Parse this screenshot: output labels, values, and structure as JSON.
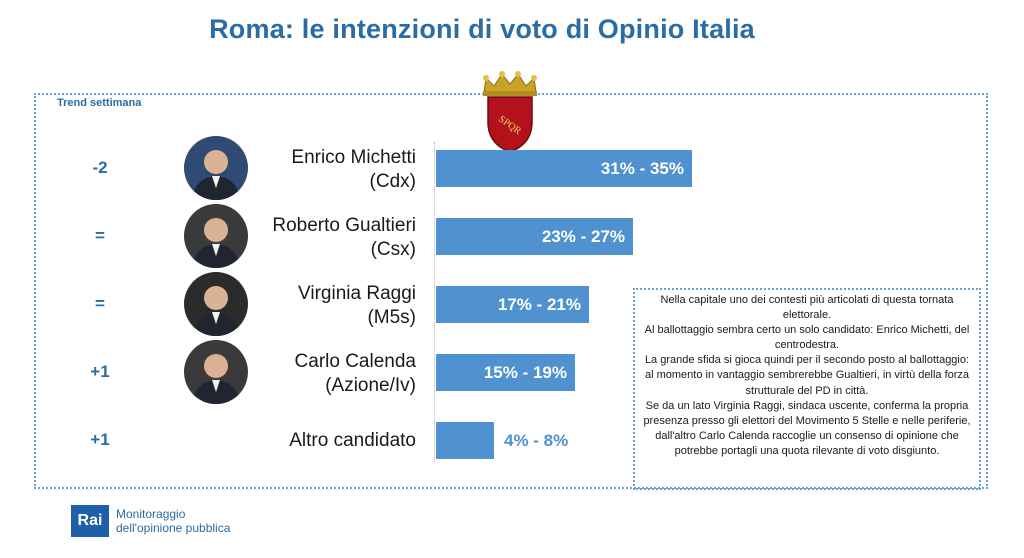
{
  "title": "Roma: le intenzioni di voto di Opinio Italia",
  "trend_label": "Trend settimana",
  "emblem": {
    "icon": "rome-spqr-crest-icon",
    "text": "SPQR"
  },
  "chart_data": {
    "type": "bar",
    "orientation": "horizontal",
    "title": "Roma: le intenzioni di voto di Opinio Italia",
    "categories": [
      "Enrico Michetti (Cdx)",
      "Roberto Gualtieri (Csx)",
      "Virginia Raggi (M5s)",
      "Carlo Calenda (Azione/Iv)",
      "Altro candidato"
    ],
    "ranges": [
      [
        31,
        35
      ],
      [
        23,
        27
      ],
      [
        17,
        21
      ],
      [
        15,
        19
      ],
      [
        4,
        8
      ]
    ],
    "values": [
      35,
      27,
      21,
      19,
      8
    ],
    "unit": "%",
    "bar_color": "#4f92cf"
  },
  "candidates": [
    {
      "name": "Enrico Michetti",
      "party": "(Cdx)",
      "trend": "-2",
      "range_label": "31% - 35%",
      "photo": "candidate-photo"
    },
    {
      "name": "Roberto Gualtieri",
      "party": "(Csx)",
      "trend": "=",
      "range_label": "23% - 27%",
      "photo": "candidate-photo"
    },
    {
      "name": "Virginia Raggi",
      "party": "(M5s)",
      "trend": "=",
      "range_label": "17% - 21%",
      "photo": "candidate-photo"
    },
    {
      "name": "Carlo Calenda",
      "party": "(Azione/Iv)",
      "trend": "+1",
      "range_label": "15% - 19%",
      "photo": "candidate-photo"
    },
    {
      "name": "Altro candidato",
      "party": "",
      "trend": "+1",
      "range_label": "4% - 8%",
      "photo": ""
    }
  ],
  "note": {
    "paragraphs": [
      "Nella capitale uno dei contesti più articolati di questa tornata elettorale.",
      "Al ballottaggio sembra certo un solo candidato: Enrico Michetti, del centrodestra.",
      "La grande sfida si gioca quindi per il secondo posto al ballottaggio: al momento in vantaggio sembrerebbe Gualtieri, in virtù della forza strutturale del PD in città.",
      "Se da un lato Virginia Raggi, sindaca uscente, conferma la propria presenza presso gli elettori del Movimento 5 Stelle e nelle periferie, dall'altro Carlo Calenda raccoglie un consenso di opinione che potrebbe portagli una quota rilevante di voto disgiunto."
    ]
  },
  "footer": {
    "logo_text": "Rai",
    "line1": "Monitoraggio",
    "line2": "dell'opinione pubblica"
  },
  "colors": {
    "title": "#2a6ca3",
    "bar": "#4f92cf",
    "frame": "#6a9fcf",
    "rai_blue": "#1d5fa8",
    "crest_red": "#b3121c",
    "crown_gold": "#c9a227"
  }
}
